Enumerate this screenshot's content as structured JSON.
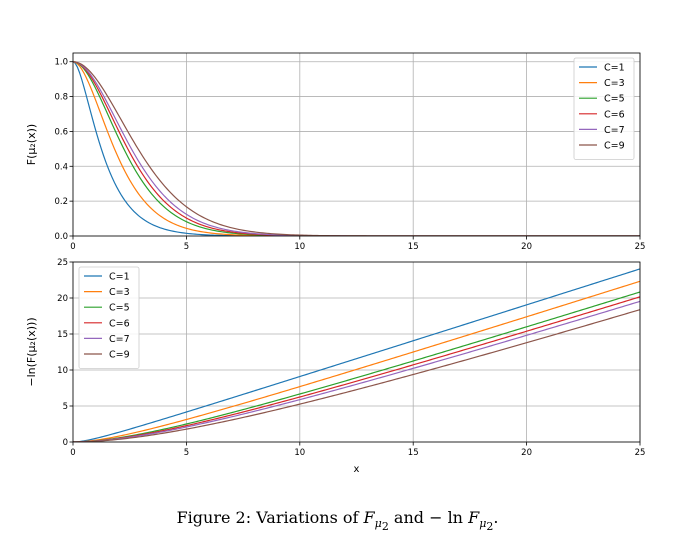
{
  "chart_data": [
    {
      "type": "line",
      "title": "",
      "xlabel": "",
      "ylabel": "F(μ₂(x))",
      "xlim": [
        0,
        25
      ],
      "ylim": [
        0,
        1.05
      ],
      "xticks": [
        "0",
        "5",
        "10",
        "15",
        "20",
        "25"
      ],
      "yticks": [
        "0.0",
        "0.2",
        "0.4",
        "0.6",
        "0.8",
        "1.0"
      ],
      "grid": true,
      "legend": "top-right",
      "formula": "exp(-x^2/(C+x))",
      "series": [
        {
          "name": "C=1",
          "color": "#1f77b4",
          "C": 1
        },
        {
          "name": "C=3",
          "color": "#ff7f0e",
          "C": 3
        },
        {
          "name": "C=5",
          "color": "#2ca02c",
          "C": 5
        },
        {
          "name": "C=6",
          "color": "#d62728",
          "C": 6
        },
        {
          "name": "C=7",
          "color": "#9467bd",
          "C": 7
        },
        {
          "name": "C=9",
          "color": "#8c564b",
          "C": 9
        }
      ]
    },
    {
      "type": "line",
      "title": "",
      "xlabel": "x",
      "ylabel": "−ln(F(μ₂(x)))",
      "xlim": [
        0,
        25
      ],
      "ylim": [
        0,
        25
      ],
      "xticks": [
        "0",
        "5",
        "10",
        "15",
        "20",
        "25"
      ],
      "yticks": [
        "0",
        "5",
        "10",
        "15",
        "20",
        "25"
      ],
      "grid": true,
      "legend": "top-left",
      "formula": "x^2/(C+x)",
      "series": [
        {
          "name": "C=1",
          "color": "#1f77b4",
          "C": 1
        },
        {
          "name": "C=3",
          "color": "#ff7f0e",
          "C": 3
        },
        {
          "name": "C=5",
          "color": "#2ca02c",
          "C": 5
        },
        {
          "name": "C=6",
          "color": "#d62728",
          "C": 6
        },
        {
          "name": "C=7",
          "color": "#9467bd",
          "C": 7
        },
        {
          "name": "C=9",
          "color": "#8c564b",
          "C": 9
        }
      ]
    }
  ],
  "caption": {
    "prefix": "Figure 2: Variations of ",
    "f_symbol": "F",
    "mu_symbol": "μ",
    "sub_index": "2",
    "middle": " and − ln ",
    "end": "."
  }
}
